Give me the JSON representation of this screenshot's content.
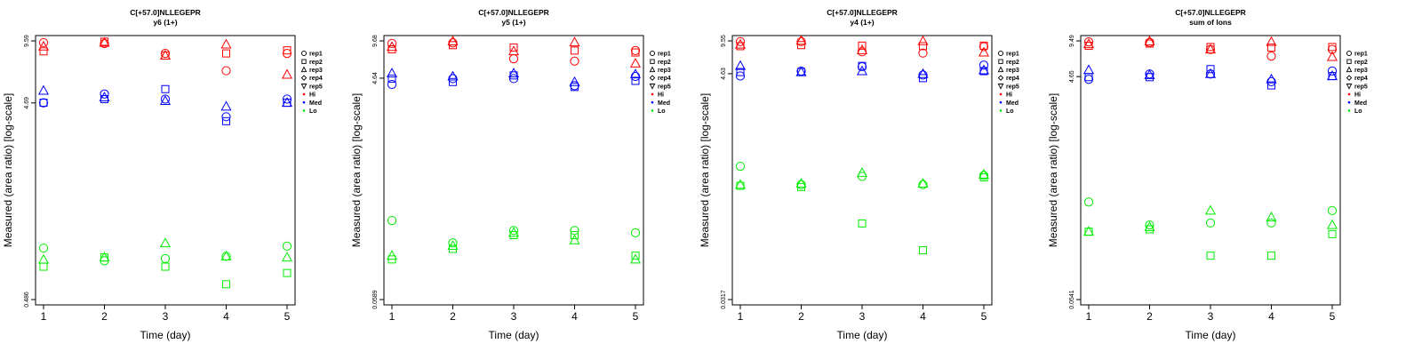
{
  "colors": {
    "Hi": "#ff0000",
    "Med": "#0000ff",
    "Lo": "#00ee00",
    "axis": "#000000"
  },
  "chart_data": [
    {
      "type": "scatter",
      "title": "C[+57.0]NLLEGEPR",
      "subtitle": "y6 (1+)",
      "xlabel": "Time (day)",
      "ylabel": "Measured (area ratio) [log-scale]",
      "x_ticks": [
        1,
        2,
        3,
        4,
        5
      ],
      "y_ticks": [
        "0.486",
        "4.69",
        "9.59"
      ],
      "y_scale": "log",
      "ylim": [
        0.486,
        9.59
      ],
      "legend": {
        "placement": "right",
        "items": [
          {
            "label": "rep1",
            "marker": "circle"
          },
          {
            "label": "rep2",
            "marker": "square"
          },
          {
            "label": "rep3",
            "marker": "triangle-up"
          },
          {
            "label": "rep4",
            "marker": "diamond"
          },
          {
            "label": "rep5",
            "marker": "triangle-down"
          },
          {
            "label": "Hi",
            "marker": "dot",
            "color": "#ff0000"
          },
          {
            "label": "Med",
            "marker": "dot",
            "color": "#0000ff"
          },
          {
            "label": "Lo",
            "marker": "dot",
            "color": "#00ee00"
          }
        ]
      },
      "series": [
        {
          "group": "Hi",
          "rep": "rep1",
          "marker": "circle",
          "x": [
            1,
            2,
            3,
            4,
            5
          ],
          "y": [
            9.4,
            9.3,
            8.3,
            6.8,
            8.3
          ]
        },
        {
          "group": "Hi",
          "rep": "rep2",
          "marker": "square",
          "x": [
            1,
            2,
            3,
            4,
            5
          ],
          "y": [
            8.5,
            9.5,
            8.1,
            8.3,
            8.6
          ]
        },
        {
          "group": "Hi",
          "rep": "rep3",
          "marker": "triangle-up",
          "x": [
            1,
            2,
            3,
            4,
            5
          ],
          "y": [
            9.0,
            9.4,
            8.1,
            9.2,
            6.5
          ]
        },
        {
          "group": "Med",
          "rep": "rep1",
          "marker": "circle",
          "x": [
            1,
            2,
            3,
            4,
            5
          ],
          "y": [
            4.7,
            5.2,
            4.9,
            4.0,
            4.9
          ]
        },
        {
          "group": "Med",
          "rep": "rep2",
          "marker": "square",
          "x": [
            1,
            2,
            3,
            4,
            5
          ],
          "y": [
            4.7,
            4.9,
            5.5,
            3.8,
            4.7
          ]
        },
        {
          "group": "Med",
          "rep": "rep3",
          "marker": "triangle-up",
          "x": [
            1,
            2,
            3,
            4,
            5
          ],
          "y": [
            5.4,
            5.0,
            4.8,
            4.5,
            4.7
          ]
        },
        {
          "group": "Lo",
          "rep": "rep1",
          "marker": "circle",
          "x": [
            1,
            2,
            3,
            4,
            5
          ],
          "y": [
            0.88,
            0.76,
            0.78,
            0.8,
            0.9
          ]
        },
        {
          "group": "Lo",
          "rep": "rep2",
          "marker": "square",
          "x": [
            1,
            2,
            3,
            4,
            5
          ],
          "y": [
            0.71,
            0.79,
            0.71,
            0.58,
            0.66
          ]
        },
        {
          "group": "Lo",
          "rep": "rep3",
          "marker": "triangle-up",
          "x": [
            1,
            2,
            3,
            4,
            5
          ],
          "y": [
            0.77,
            0.79,
            0.93,
            0.8,
            0.79
          ]
        }
      ]
    },
    {
      "type": "scatter",
      "title": "C[+57.0]NLLEGEPR",
      "subtitle": "y5 (1+)",
      "xlabel": "Time (day)",
      "ylabel": "Measured (area ratio) [log-scale]",
      "x_ticks": [
        1,
        2,
        3,
        4,
        5
      ],
      "y_ticks": [
        "0.0589",
        "4.64",
        "9.68"
      ],
      "y_scale": "log",
      "ylim": [
        0.0589,
        9.68
      ],
      "legend": {
        "placement": "right",
        "items": [
          {
            "label": "rep1",
            "marker": "circle"
          },
          {
            "label": "rep2",
            "marker": "square"
          },
          {
            "label": "rep3",
            "marker": "triangle-up"
          },
          {
            "label": "rep4",
            "marker": "diamond"
          },
          {
            "label": "rep5",
            "marker": "triangle-down"
          },
          {
            "label": "Hi",
            "marker": "dot",
            "color": "#ff0000"
          },
          {
            "label": "Med",
            "marker": "dot",
            "color": "#0000ff"
          },
          {
            "label": "Lo",
            "marker": "dot",
            "color": "#00ee00"
          }
        ]
      },
      "series": [
        {
          "group": "Hi",
          "rep": "rep1",
          "marker": "circle",
          "x": [
            1,
            2,
            3,
            4,
            5
          ],
          "y": [
            9.2,
            9.3,
            6.8,
            6.5,
            8.0
          ]
        },
        {
          "group": "Hi",
          "rep": "rep2",
          "marker": "square",
          "x": [
            1,
            2,
            3,
            4,
            5
          ],
          "y": [
            8.2,
            8.9,
            8.5,
            8.0,
            7.7
          ]
        },
        {
          "group": "Hi",
          "rep": "rep3",
          "marker": "triangle-up",
          "x": [
            1,
            2,
            3,
            4,
            5
          ],
          "y": [
            8.6,
            9.6,
            7.9,
            9.4,
            6.2
          ]
        },
        {
          "group": "Med",
          "rep": "rep1",
          "marker": "circle",
          "x": [
            1,
            2,
            3,
            4,
            5
          ],
          "y": [
            4.1,
            4.6,
            4.6,
            4.0,
            4.8
          ]
        },
        {
          "group": "Med",
          "rep": "rep2",
          "marker": "square",
          "x": [
            1,
            2,
            3,
            4,
            5
          ],
          "y": [
            4.6,
            4.3,
            4.9,
            3.9,
            4.4
          ]
        },
        {
          "group": "Med",
          "rep": "rep3",
          "marker": "triangle-up",
          "x": [
            1,
            2,
            3,
            4,
            5
          ],
          "y": [
            5.1,
            4.8,
            5.1,
            4.3,
            5.0
          ]
        },
        {
          "group": "Lo",
          "rep": "rep1",
          "marker": "circle",
          "x": [
            1,
            2,
            3,
            4,
            5
          ],
          "y": [
            0.28,
            0.18,
            0.23,
            0.23,
            0.22
          ]
        },
        {
          "group": "Lo",
          "rep": "rep2",
          "marker": "square",
          "x": [
            1,
            2,
            3,
            4,
            5
          ],
          "y": [
            0.13,
            0.16,
            0.21,
            0.21,
            0.14
          ]
        },
        {
          "group": "Lo",
          "rep": "rep3",
          "marker": "triangle-up",
          "x": [
            1,
            2,
            3,
            4,
            5
          ],
          "y": [
            0.14,
            0.17,
            0.22,
            0.19,
            0.13
          ]
        }
      ]
    },
    {
      "type": "scatter",
      "title": "C[+57.0]NLLEGEPR",
      "subtitle": "y4 (1+)",
      "xlabel": "Time (day)",
      "ylabel": "Measured (area ratio) [log-scale]",
      "x_ticks": [
        1,
        2,
        3,
        4,
        5
      ],
      "y_ticks": [
        "0.0317",
        "4.63",
        "9.55"
      ],
      "y_scale": "log",
      "ylim": [
        0.0317,
        9.55
      ],
      "legend": {
        "placement": "right",
        "items": [
          {
            "label": "rep1",
            "marker": "circle"
          },
          {
            "label": "rep2",
            "marker": "square"
          },
          {
            "label": "rep3",
            "marker": "triangle-up"
          },
          {
            "label": "rep4",
            "marker": "diamond"
          },
          {
            "label": "rep5",
            "marker": "triangle-down"
          },
          {
            "label": "Hi",
            "marker": "dot",
            "color": "#ff0000"
          },
          {
            "label": "Med",
            "marker": "dot",
            "color": "#0000ff"
          },
          {
            "label": "Lo",
            "marker": "dot",
            "color": "#00ee00"
          }
        ]
      },
      "series": [
        {
          "group": "Hi",
          "rep": "rep1",
          "marker": "circle",
          "x": [
            1,
            2,
            3,
            4,
            5
          ],
          "y": [
            9.4,
            9.4,
            7.5,
            7.3,
            8.4
          ]
        },
        {
          "group": "Hi",
          "rep": "rep2",
          "marker": "square",
          "x": [
            1,
            2,
            3,
            4,
            5
          ],
          "y": [
            8.5,
            8.7,
            8.6,
            8.5,
            8.6
          ]
        },
        {
          "group": "Hi",
          "rep": "rep3",
          "marker": "triangle-up",
          "x": [
            1,
            2,
            3,
            4,
            5
          ],
          "y": [
            8.8,
            9.6,
            7.8,
            9.5,
            7.4
          ]
        },
        {
          "group": "Med",
          "rep": "rep1",
          "marker": "circle",
          "x": [
            1,
            2,
            3,
            4,
            5
          ],
          "y": [
            4.4,
            4.9,
            5.4,
            4.5,
            5.6
          ]
        },
        {
          "group": "Med",
          "rep": "rep2",
          "marker": "square",
          "x": [
            1,
            2,
            3,
            4,
            5
          ],
          "y": [
            4.8,
            4.8,
            5.5,
            4.2,
            4.9
          ]
        },
        {
          "group": "Med",
          "rep": "rep3",
          "marker": "triangle-up",
          "x": [
            1,
            2,
            3,
            4,
            5
          ],
          "y": [
            5.5,
            4.8,
            4.9,
            4.6,
            5.0
          ]
        },
        {
          "group": "Lo",
          "rep": "rep1",
          "marker": "circle",
          "x": [
            1,
            2,
            3,
            4,
            5
          ],
          "y": [
            0.6,
            0.4,
            0.48,
            0.4,
            0.49
          ]
        },
        {
          "group": "Lo",
          "rep": "rep2",
          "marker": "square",
          "x": [
            1,
            2,
            3,
            4,
            5
          ],
          "y": [
            0.39,
            0.38,
            0.17,
            0.094,
            0.47
          ]
        },
        {
          "group": "Lo",
          "rep": "rep3",
          "marker": "triangle-up",
          "x": [
            1,
            2,
            3,
            4,
            5
          ],
          "y": [
            0.4,
            0.41,
            0.52,
            0.41,
            0.5
          ]
        }
      ]
    },
    {
      "type": "scatter",
      "title": "C[+57.0]NLLEGEPR",
      "subtitle": "sum of Ions",
      "xlabel": "Time (day)",
      "ylabel": "Measured (area ratio) [log-scale]",
      "x_ticks": [
        1,
        2,
        3,
        4,
        5
      ],
      "y_ticks": [
        "0.0541",
        "4.65",
        "9.49"
      ],
      "y_scale": "log",
      "ylim": [
        0.0541,
        9.49
      ],
      "legend": {
        "placement": "right",
        "items": [
          {
            "label": "rep1",
            "marker": "circle"
          },
          {
            "label": "rep2",
            "marker": "square"
          },
          {
            "label": "rep3",
            "marker": "triangle-up"
          },
          {
            "label": "rep4",
            "marker": "diamond"
          },
          {
            "label": "rep5",
            "marker": "triangle-down"
          },
          {
            "label": "Hi",
            "marker": "dot",
            "color": "#ff0000"
          },
          {
            "label": "Med",
            "marker": "dot",
            "color": "#0000ff"
          },
          {
            "label": "Lo",
            "marker": "dot",
            "color": "#00ee00"
          }
        ]
      },
      "series": [
        {
          "group": "Hi",
          "rep": "rep1",
          "marker": "circle",
          "x": [
            1,
            2,
            3,
            4,
            5
          ],
          "y": [
            9.3,
            9.2,
            8.0,
            7.0,
            8.0
          ]
        },
        {
          "group": "Hi",
          "rep": "rep2",
          "marker": "square",
          "x": [
            1,
            2,
            3,
            4,
            5
          ],
          "y": [
            8.6,
            9.0,
            8.4,
            8.3,
            8.4
          ]
        },
        {
          "group": "Hi",
          "rep": "rep3",
          "marker": "triangle-up",
          "x": [
            1,
            2,
            3,
            4,
            5
          ],
          "y": [
            8.9,
            9.4,
            8.0,
            9.3,
            6.9
          ]
        },
        {
          "group": "Med",
          "rep": "rep1",
          "marker": "circle",
          "x": [
            1,
            2,
            3,
            4,
            5
          ],
          "y": [
            4.4,
            4.9,
            4.9,
            4.2,
            5.2
          ]
        },
        {
          "group": "Med",
          "rep": "rep2",
          "marker": "square",
          "x": [
            1,
            2,
            3,
            4,
            5
          ],
          "y": [
            4.6,
            4.6,
            5.4,
            3.9,
            4.7
          ]
        },
        {
          "group": "Med",
          "rep": "rep3",
          "marker": "triangle-up",
          "x": [
            1,
            2,
            3,
            4,
            5
          ],
          "y": [
            5.3,
            4.8,
            4.9,
            4.4,
            4.7
          ]
        },
        {
          "group": "Lo",
          "rep": "rep1",
          "marker": "circle",
          "x": [
            1,
            2,
            3,
            4,
            5
          ],
          "y": [
            0.38,
            0.24,
            0.25,
            0.25,
            0.32
          ]
        },
        {
          "group": "Lo",
          "rep": "rep2",
          "marker": "square",
          "x": [
            1,
            2,
            3,
            4,
            5
          ],
          "y": [
            0.21,
            0.22,
            0.13,
            0.13,
            0.2
          ]
        },
        {
          "group": "Lo",
          "rep": "rep3",
          "marker": "triangle-up",
          "x": [
            1,
            2,
            3,
            4,
            5
          ],
          "y": [
            0.21,
            0.23,
            0.32,
            0.28,
            0.24
          ]
        }
      ]
    }
  ]
}
